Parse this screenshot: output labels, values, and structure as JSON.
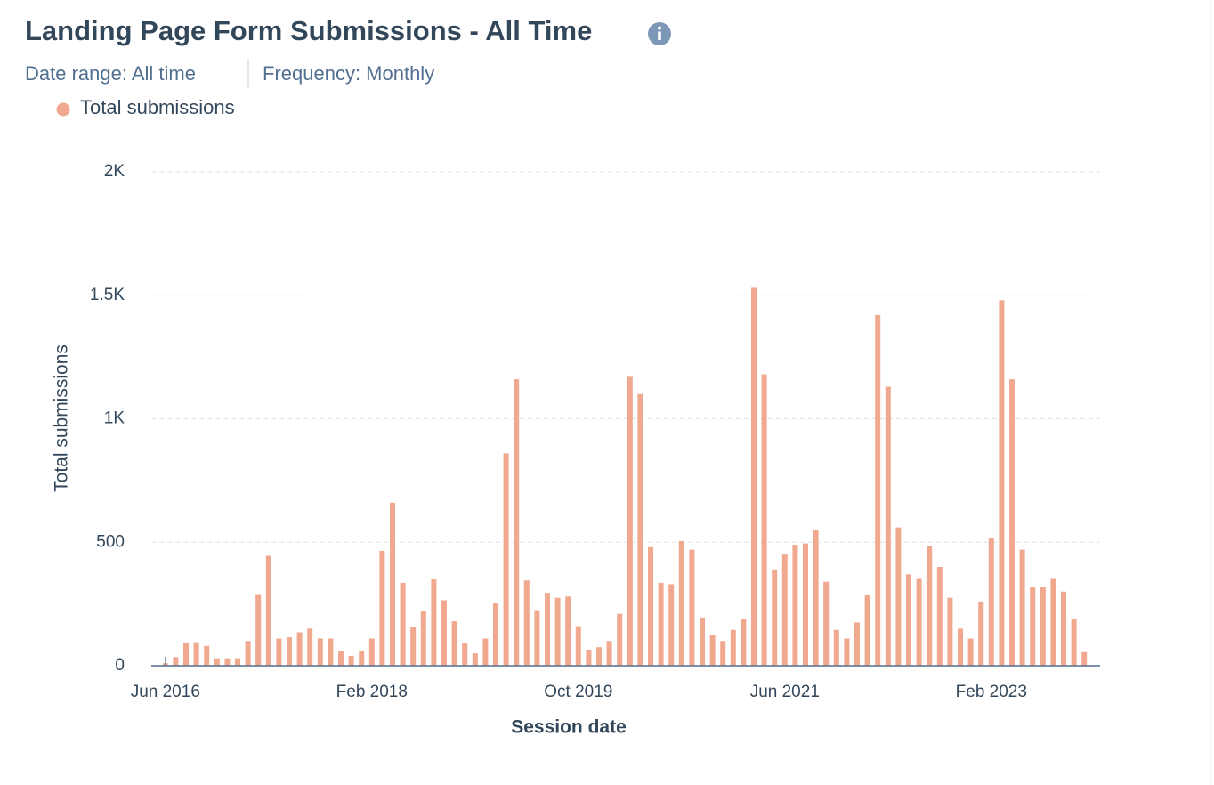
{
  "chart_data": {
    "type": "bar",
    "title": "Landing Page Form Submissions - All Time",
    "date_range": "Date range: All time",
    "frequency": "Frequency: Monthly",
    "x_label": "Session date",
    "y_label": "Total submissions",
    "categories": [
      "Jun 2016",
      null,
      null,
      null,
      null,
      null,
      null,
      null,
      null,
      null,
      null,
      null,
      null,
      null,
      null,
      null,
      null,
      null,
      null,
      null,
      "Feb 2018",
      null,
      null,
      null,
      null,
      null,
      null,
      null,
      null,
      null,
      null,
      null,
      null,
      null,
      null,
      null,
      null,
      null,
      null,
      null,
      "Oct 2019",
      null,
      null,
      null,
      null,
      null,
      null,
      null,
      null,
      null,
      null,
      null,
      null,
      null,
      null,
      null,
      null,
      null,
      null,
      null,
      "Jun 2021",
      null,
      null,
      null,
      null,
      null,
      null,
      null,
      null,
      null,
      null,
      null,
      null,
      null,
      null,
      null,
      null,
      null,
      null,
      null,
      "Feb 2023",
      null,
      null,
      null,
      null,
      null,
      null,
      null,
      null,
      null
    ],
    "series": [
      {
        "name": "Total submissions",
        "color": "#f0a88f",
        "values": [
          10,
          35,
          90,
          95,
          80,
          30,
          30,
          30,
          100,
          290,
          445,
          110,
          115,
          135,
          150,
          110,
          110,
          60,
          40,
          60,
          110,
          465,
          660,
          335,
          155,
          220,
          350,
          265,
          180,
          90,
          50,
          110,
          255,
          860,
          1160,
          345,
          225,
          295,
          275,
          280,
          160,
          65,
          75,
          100,
          210,
          1170,
          1100,
          480,
          335,
          330,
          505,
          470,
          195,
          125,
          100,
          145,
          190,
          1530,
          1180,
          390,
          450,
          490,
          495,
          550,
          340,
          145,
          110,
          175,
          285,
          1420,
          1130,
          560,
          370,
          355,
          485,
          400,
          275,
          150,
          110,
          260,
          515,
          1480,
          1160,
          470,
          320,
          320,
          355,
          300,
          190,
          55
        ]
      }
    ],
    "ylim": [
      0,
      2000
    ],
    "yticks": [
      0,
      500,
      {
        "value": 1000,
        "label": "1K"
      },
      {
        "value": 1500,
        "label": "1.5K"
      },
      {
        "value": 2000,
        "label": "2K"
      }
    ],
    "grid": true
  }
}
